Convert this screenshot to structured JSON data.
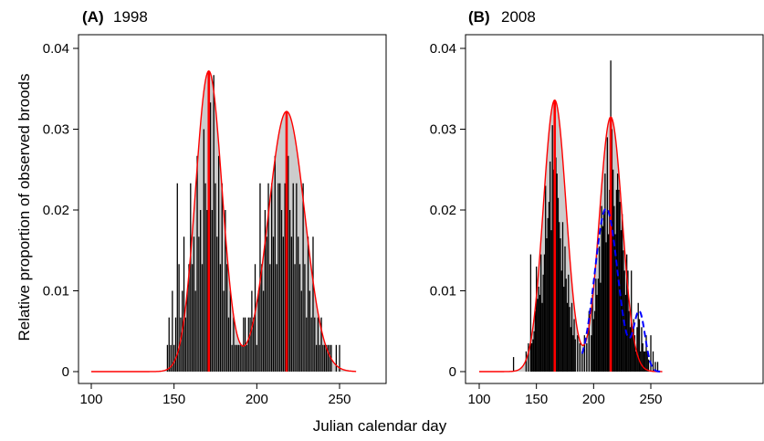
{
  "figure": {
    "xlabel": "Julian calendar day",
    "ylabel": "Relative proportion of observed broods"
  },
  "chart_data": [
    {
      "type": "bar",
      "panel": "A",
      "title_tag": "(A)",
      "title_year": "1998",
      "xlabel": "Julian calendar day",
      "ylabel": "Relative proportion of observed broods",
      "xlim": [
        100,
        260
      ],
      "ylim": [
        0,
        0.04
      ],
      "xticks": [
        100,
        150,
        200,
        250
      ],
      "yticks": [
        0,
        0.01,
        0.02,
        0.03,
        0.04
      ],
      "ytick_labels": [
        "0",
        "0.01",
        "0.02",
        "0.03",
        "0.04"
      ],
      "grid": false,
      "bar_color": "#000000",
      "fill_color": "#cccccc",
      "curve_color": "#ff0000",
      "bars": {
        "x": [
          146,
          147,
          148,
          149,
          150,
          151,
          152,
          153,
          154,
          155,
          156,
          157,
          158,
          159,
          160,
          161,
          162,
          163,
          164,
          165,
          166,
          167,
          168,
          169,
          170,
          171,
          172,
          173,
          174,
          175,
          176,
          177,
          178,
          179,
          180,
          181,
          182,
          183,
          184,
          185,
          186,
          187,
          188,
          189,
          190,
          191,
          192,
          193,
          194,
          195,
          196,
          197,
          198,
          199,
          200,
          201,
          202,
          203,
          204,
          205,
          206,
          207,
          208,
          209,
          210,
          211,
          212,
          213,
          214,
          215,
          216,
          217,
          218,
          219,
          220,
          221,
          222,
          223,
          224,
          225,
          226,
          227,
          228,
          229,
          230,
          231,
          232,
          233,
          234,
          235,
          236,
          237,
          238,
          239,
          240,
          241,
          242,
          243,
          244,
          245,
          248,
          250
        ],
        "y": [
          0.0033,
          0.0067,
          0.0033,
          0.01,
          0.0033,
          0.0067,
          0.0233,
          0.0133,
          0.0067,
          0.01,
          0.0167,
          0.0067,
          0.01,
          0.0133,
          0.0233,
          0.0133,
          0.0167,
          0.01,
          0.0267,
          0.0167,
          0.02,
          0.0133,
          0.03,
          0.0233,
          0.02,
          0.0367,
          0.0333,
          0.02,
          0.0367,
          0.0233,
          0.0167,
          0.0267,
          0.0133,
          0.0233,
          0.01,
          0.02,
          0.0133,
          0.0067,
          0.01,
          0.0033,
          0.0067,
          0.0033,
          0.0033,
          0.0033,
          0.0033,
          0.0033,
          0.0067,
          0.0067,
          0.0033,
          0.0067,
          0.0067,
          0.01,
          0.0067,
          0.0133,
          0.0033,
          0.01,
          0.0233,
          0.0133,
          0.01,
          0.02,
          0.0167,
          0.0233,
          0.0133,
          0.0233,
          0.0167,
          0.0267,
          0.0133,
          0.0233,
          0.0233,
          0.02,
          0.0167,
          0.0233,
          0.0267,
          0.0267,
          0.02,
          0.0167,
          0.0233,
          0.0133,
          0.0233,
          0.0167,
          0.0133,
          0.01,
          0.0233,
          0.0133,
          0.0067,
          0.0167,
          0.01,
          0.0067,
          0.0167,
          0.0067,
          0.0033,
          0.0067,
          0.0033,
          0.0067,
          0.0033,
          0.0033,
          0.0033,
          0.0033,
          0.0033,
          0.0033,
          0.0033,
          0.0033
        ]
      },
      "fit_curve": {
        "components": [
          {
            "mean": 171,
            "sd": 8,
            "peak": 0.0372
          },
          {
            "mean": 218,
            "sd": 11,
            "peak": 0.0322
          }
        ],
        "x_range": [
          100,
          260
        ]
      },
      "mean_lines": [
        171,
        218
      ]
    },
    {
      "type": "bar",
      "panel": "B",
      "title_tag": "(B)",
      "title_year": "2008",
      "xlabel": "Julian calendar day",
      "ylabel": "Relative proportion of observed broods",
      "xlim": [
        100,
        260
      ],
      "ylim": [
        0,
        0.04
      ],
      "xticks": [
        100,
        150,
        200,
        250
      ],
      "yticks": [
        0,
        0.01,
        0.02,
        0.03,
        0.04
      ],
      "ytick_labels": [
        "0",
        "0.01",
        "0.02",
        "0.03",
        "0.04"
      ],
      "grid": false,
      "bar_color": "#000000",
      "fill_color": "#cccccc",
      "curve_color": "#ff0000",
      "dashed_color": "#0000ff",
      "bars": {
        "x": [
          130,
          141,
          143,
          145,
          146,
          147,
          148,
          149,
          150,
          151,
          152,
          153,
          154,
          155,
          156,
          157,
          158,
          159,
          160,
          161,
          162,
          163,
          164,
          165,
          166,
          167,
          168,
          169,
          170,
          171,
          172,
          173,
          174,
          175,
          176,
          177,
          178,
          179,
          180,
          181,
          182,
          183,
          184,
          186,
          188,
          190,
          192,
          194,
          196,
          198,
          199,
          200,
          201,
          202,
          203,
          204,
          205,
          206,
          207,
          208,
          209,
          210,
          211,
          212,
          213,
          214,
          215,
          216,
          217,
          218,
          219,
          220,
          221,
          222,
          223,
          224,
          225,
          226,
          227,
          228,
          229,
          230,
          231,
          232,
          233,
          234,
          235,
          236,
          237,
          238,
          239,
          240,
          241,
          242,
          243,
          244,
          245,
          246,
          247,
          248,
          250,
          252,
          254,
          256
        ],
        "y": [
          0.0018,
          0.0025,
          0.0035,
          0.0145,
          0.0035,
          0.004,
          0.005,
          0.0075,
          0.013,
          0.009,
          0.0105,
          0.0095,
          0.0145,
          0.0085,
          0.012,
          0.0145,
          0.023,
          0.0165,
          0.019,
          0.021,
          0.026,
          0.0175,
          0.0305,
          0.025,
          0.0305,
          0.0265,
          0.0245,
          0.0215,
          0.0185,
          0.0165,
          0.0125,
          0.0185,
          0.0105,
          0.0155,
          0.0115,
          0.0085,
          0.012,
          0.008,
          0.0055,
          0.0085,
          0.0045,
          0.0065,
          0.004,
          0.0045,
          0.0035,
          0.0025,
          0.0045,
          0.0035,
          0.0075,
          0.0045,
          0.0095,
          0.0065,
          0.0075,
          0.0115,
          0.0095,
          0.0115,
          0.0155,
          0.011,
          0.0205,
          0.018,
          0.0195,
          0.0245,
          0.016,
          0.029,
          0.017,
          0.0225,
          0.0385,
          0.03,
          0.025,
          0.0205,
          0.017,
          0.0225,
          0.0245,
          0.0225,
          0.021,
          0.0175,
          0.0195,
          0.015,
          0.0125,
          0.0095,
          0.0145,
          0.0125,
          0.0075,
          0.0055,
          0.0125,
          0.0055,
          0.0065,
          0.0045,
          0.0025,
          0.0055,
          0.0085,
          0.0065,
          0.0025,
          0.0055,
          0.0035,
          0.0025,
          0.0025,
          0.0045,
          0.0025,
          0.0015,
          0.0045,
          0.0025,
          0.0012,
          0.0012
        ]
      },
      "fit_curve": {
        "components": [
          {
            "mean": 166,
            "sd": 10,
            "peak": 0.0336
          },
          {
            "mean": 215,
            "sd": 10,
            "peak": 0.0315
          }
        ],
        "x_range": [
          100,
          260
        ]
      },
      "mean_lines": [
        166,
        215
      ],
      "dashed_curve": {
        "components": [
          {
            "mean": 211,
            "sd": 10,
            "peak": 0.0202
          },
          {
            "mean": 240,
            "sd": 5,
            "peak": 0.0072
          }
        ],
        "x_range": [
          190,
          260
        ]
      }
    }
  ]
}
